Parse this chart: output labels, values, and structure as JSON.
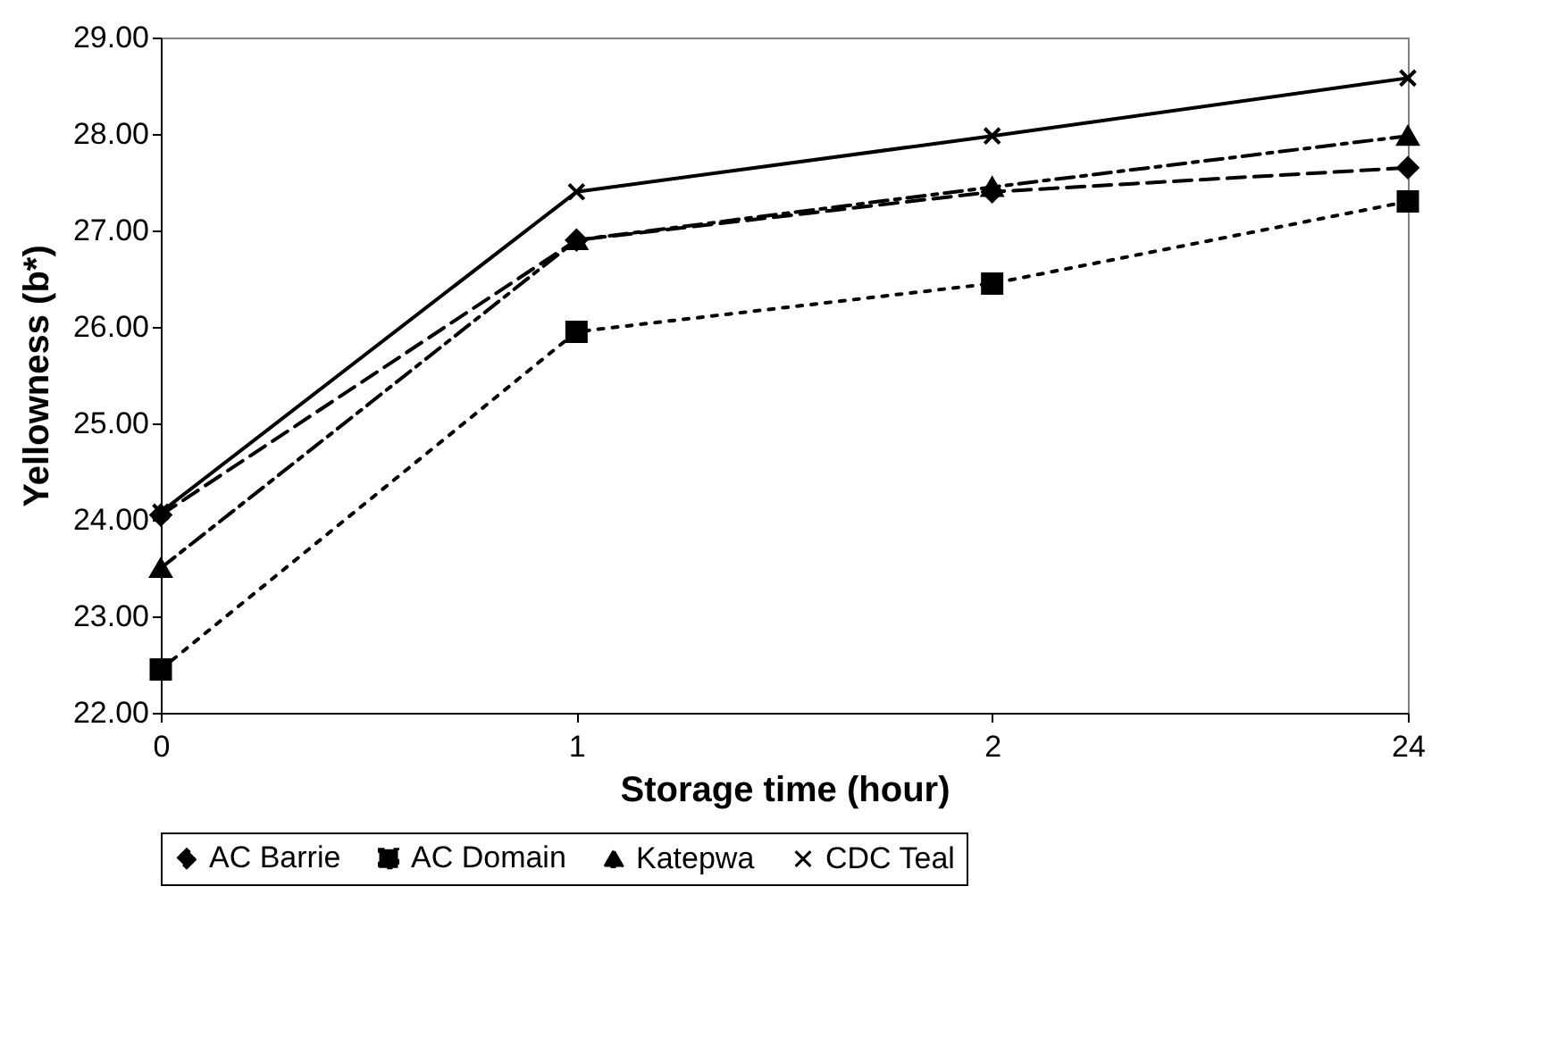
{
  "chart_data": {
    "type": "line",
    "xlabel": "Storage time (hour)",
    "ylabel": "Yellowness (b*)",
    "categories": [
      "0",
      "1",
      "2",
      "24"
    ],
    "ylim": [
      22,
      29
    ],
    "yticks": [
      {
        "value": 22,
        "label": "22.00"
      },
      {
        "value": 23,
        "label": "23.00"
      },
      {
        "value": 24,
        "label": "24.00"
      },
      {
        "value": 25,
        "label": "25.00"
      },
      {
        "value": 26,
        "label": "26.00"
      },
      {
        "value": 27,
        "label": "27.00"
      },
      {
        "value": 28,
        "label": "28.00"
      },
      {
        "value": 29,
        "label": "29.00"
      }
    ],
    "grid": false,
    "legend": "bottom",
    "series": [
      {
        "name": "AC Barrie",
        "color": "#000000",
        "marker": "diamond",
        "line_style": "dashed",
        "values": [
          24.05,
          26.9,
          27.4,
          27.65
        ]
      },
      {
        "name": "AC Domain",
        "color": "#000000",
        "marker": "square",
        "line_style": "dotted",
        "values": [
          22.45,
          25.95,
          26.45,
          27.3
        ]
      },
      {
        "name": "Katepwa",
        "color": "#000000",
        "marker": "triangle",
        "line_style": "dashdot",
        "values": [
          23.5,
          26.9,
          27.45,
          27.98
        ]
      },
      {
        "name": "CDC Teal",
        "color": "#000000",
        "marker": "cross",
        "line_style": "solid",
        "values": [
          24.08,
          27.4,
          27.98,
          28.58
        ]
      }
    ]
  }
}
